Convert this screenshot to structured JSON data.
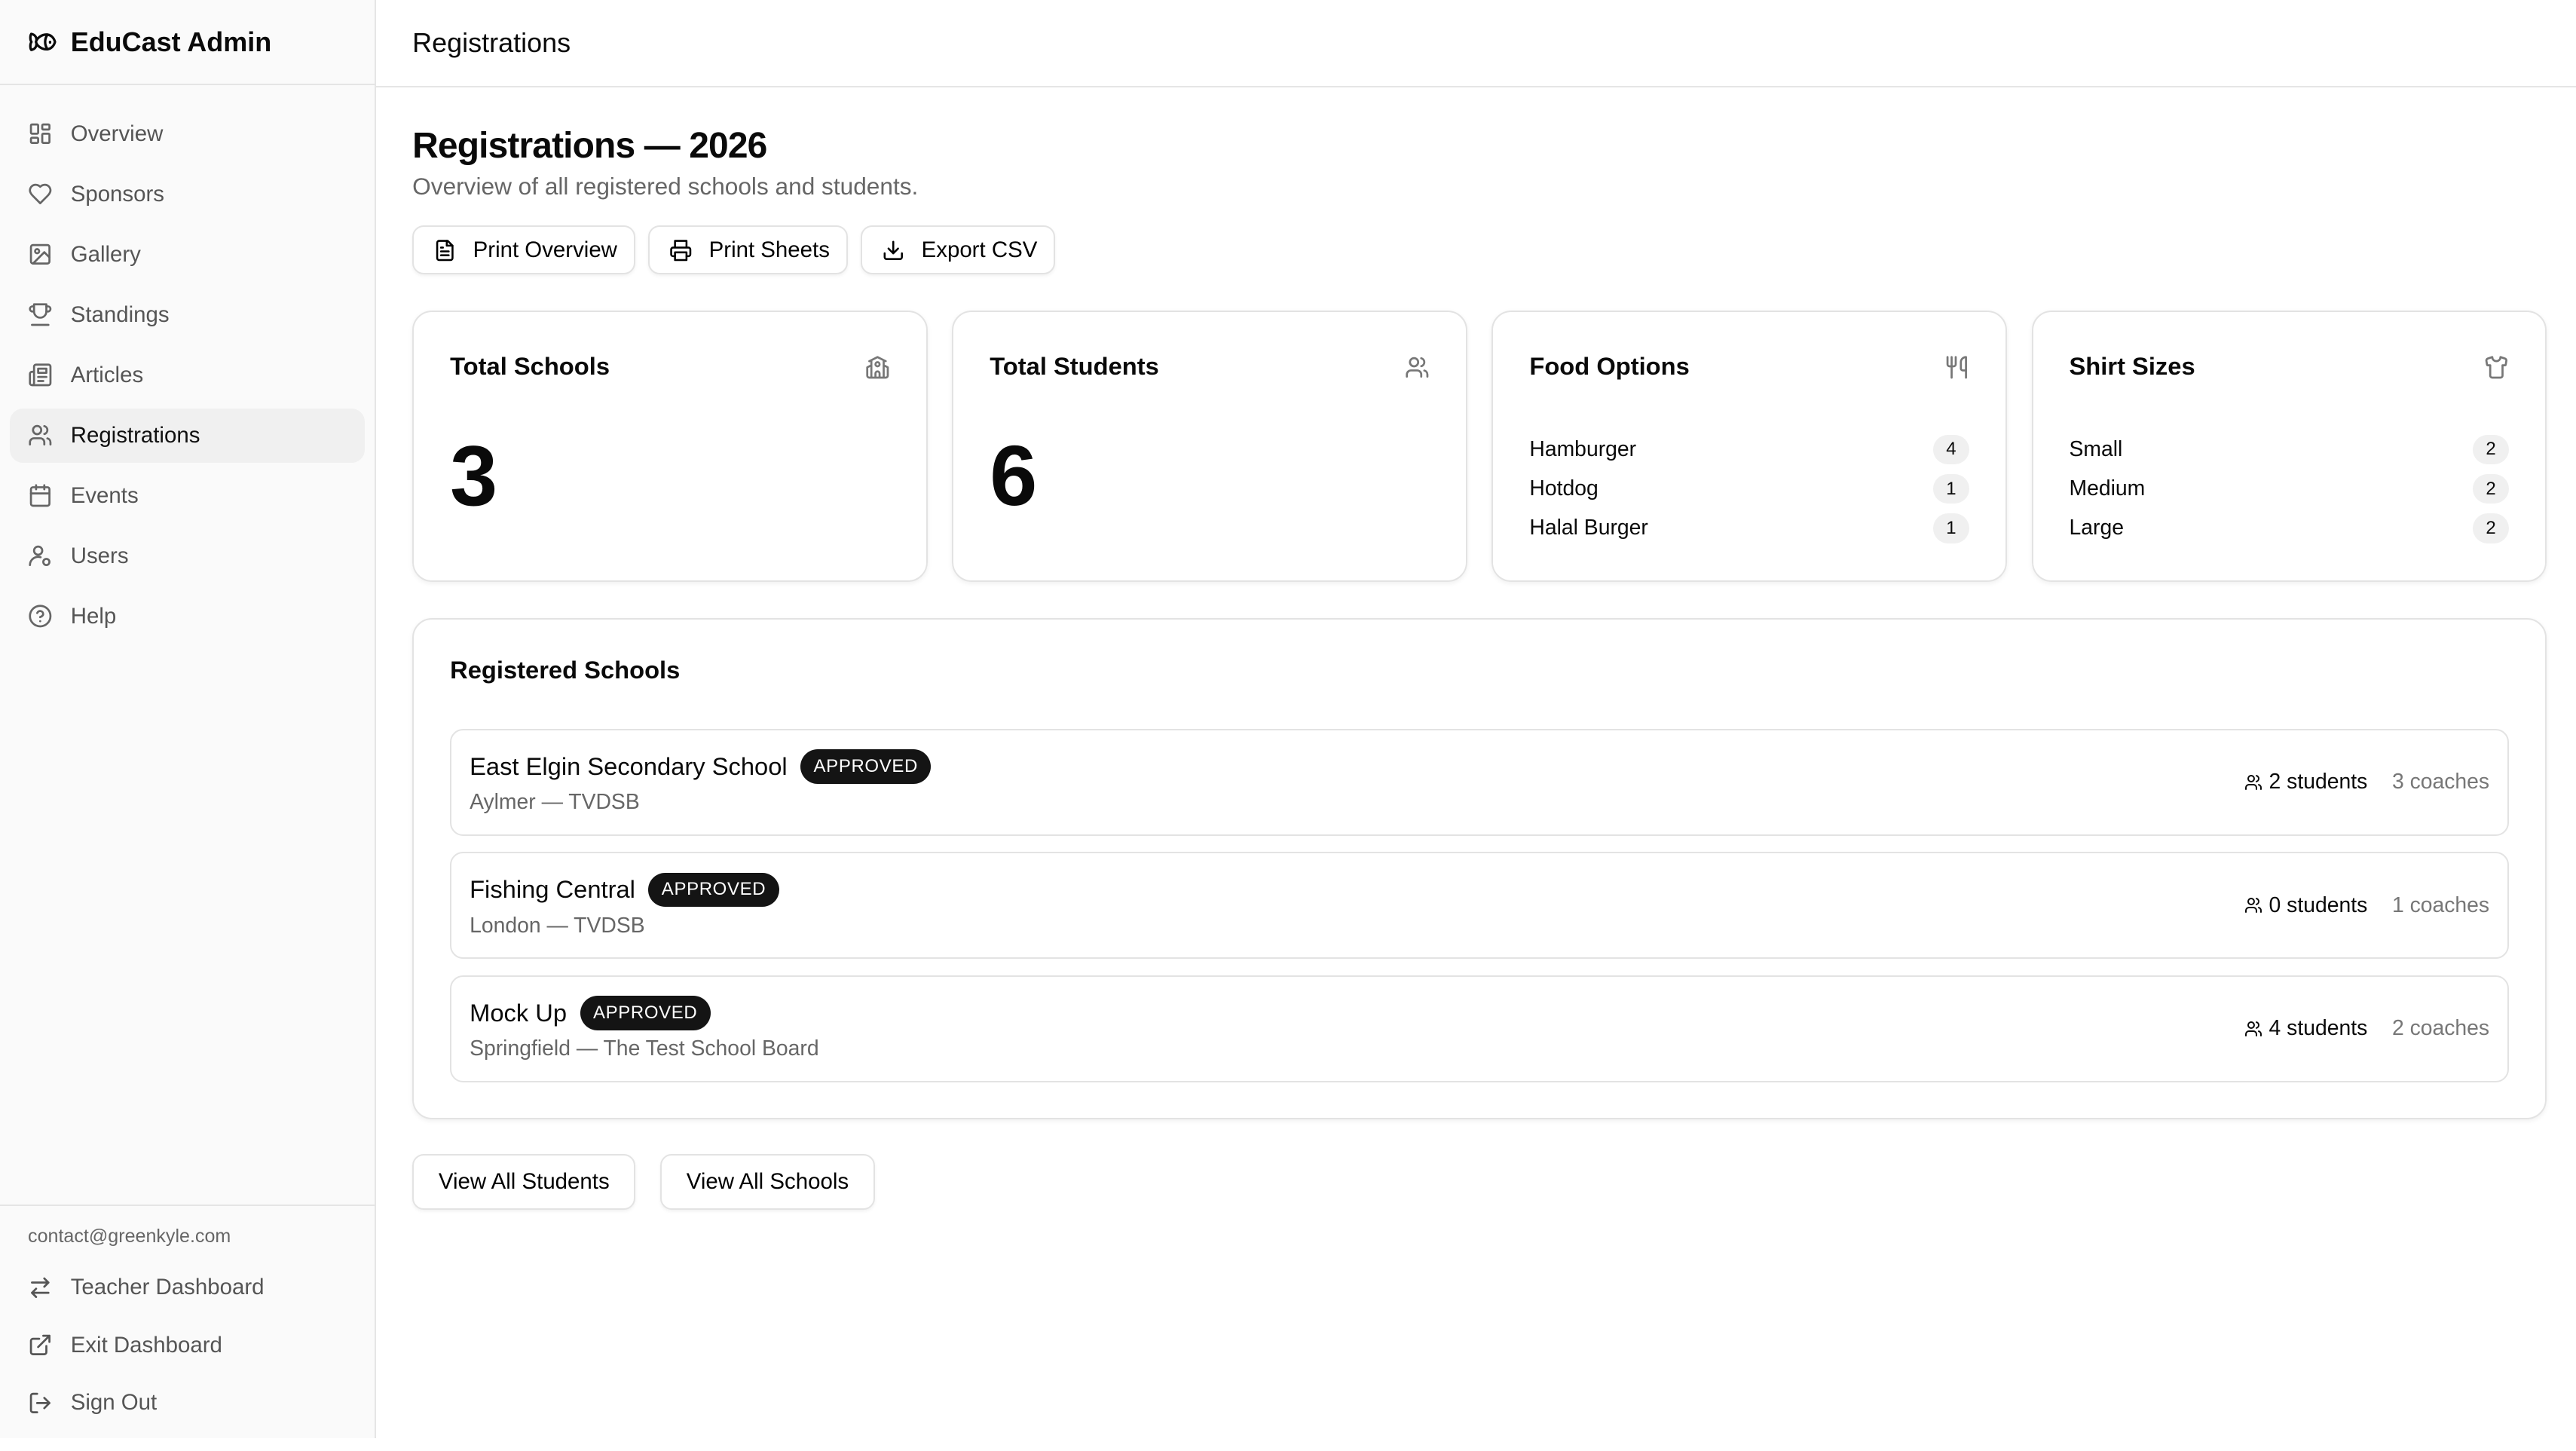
{
  "app": {
    "title": "EduCast Admin",
    "logo_icon": "fish-icon"
  },
  "sidebar": {
    "items": [
      {
        "label": "Overview",
        "icon": "layout-dashboard-icon"
      },
      {
        "label": "Sponsors",
        "icon": "heart-icon"
      },
      {
        "label": "Gallery",
        "icon": "image-icon"
      },
      {
        "label": "Standings",
        "icon": "trophy-icon"
      },
      {
        "label": "Articles",
        "icon": "newspaper-icon"
      },
      {
        "label": "Registrations",
        "icon": "users-icon",
        "active": true
      },
      {
        "label": "Events",
        "icon": "calendar-icon"
      },
      {
        "label": "Users",
        "icon": "user-cog-icon"
      },
      {
        "label": "Help",
        "icon": "help-circle-icon"
      }
    ],
    "email": "contact@greenkyle.com",
    "footer": [
      {
        "label": "Teacher Dashboard",
        "icon": "arrow-left-right-icon"
      },
      {
        "label": "Exit Dashboard",
        "icon": "external-link-icon"
      },
      {
        "label": "Sign Out",
        "icon": "log-out-icon"
      }
    ]
  },
  "header": {
    "title": "Registrations"
  },
  "page": {
    "title": "Registrations — 2026",
    "subtitle": "Overview of all registered schools and students.",
    "actions": [
      "Print Overview",
      "Print Sheets",
      "Export CSV"
    ]
  },
  "cards": {
    "schools": {
      "title": "Total Schools",
      "value": "3"
    },
    "students": {
      "title": "Total Students",
      "value": "6"
    },
    "food": {
      "title": "Food Options",
      "items": [
        {
          "label": "Hamburger",
          "count": "4"
        },
        {
          "label": "Hotdog",
          "count": "1"
        },
        {
          "label": "Halal Burger",
          "count": "1"
        }
      ]
    },
    "shirts": {
      "title": "Shirt Sizes",
      "items": [
        {
          "label": "Small",
          "count": "2"
        },
        {
          "label": "Medium",
          "count": "2"
        },
        {
          "label": "Large",
          "count": "2"
        }
      ]
    }
  },
  "schools": {
    "title": "Registered Schools",
    "rows": [
      {
        "name": "East Elgin Secondary School",
        "status": "APPROVED",
        "location": "Aylmer — TVDSB",
        "students": "2 students",
        "coaches": "3 coaches"
      },
      {
        "name": "Fishing Central",
        "status": "APPROVED",
        "location": "London — TVDSB",
        "students": "0 students",
        "coaches": "1 coaches"
      },
      {
        "name": "Mock Up",
        "status": "APPROVED",
        "location": "Springfield — The Test School Board",
        "students": "4 students",
        "coaches": "2 coaches"
      }
    ]
  },
  "bottom": {
    "view_students": "View All Students",
    "view_schools": "View All Schools"
  }
}
